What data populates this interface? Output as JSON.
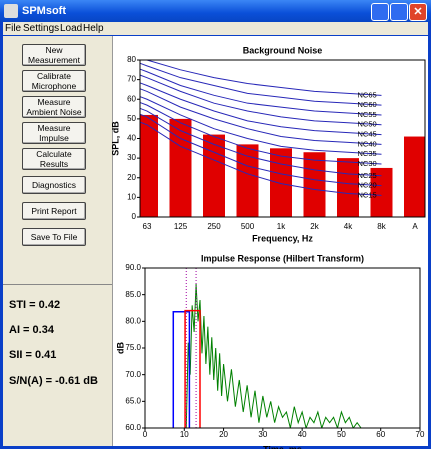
{
  "window": {
    "title": "SPMsoft"
  },
  "menu": [
    "File",
    "Settings",
    "Load",
    "Help"
  ],
  "buttons": [
    "New Measurement",
    "Calibrate Microphone",
    "Measure Ambient Noise",
    "Measure Impulse",
    "Calculate Results",
    "Diagnostics",
    "Print Report",
    "Save To File"
  ],
  "results": [
    "STI = 0.42",
    "AI = 0.34",
    "SII = 0.41",
    "S/N(A) = -0.61 dB"
  ],
  "chart_data": [
    {
      "type": "bar",
      "title": "Background Noise",
      "xlabel": "Frequency, Hz",
      "ylabel": "SPL, dB",
      "categories": [
        "63",
        "125",
        "250",
        "500",
        "1k",
        "2k",
        "4k",
        "8k",
        "A"
      ],
      "series": [
        {
          "color": "#e00000",
          "values": [
            52,
            50,
            42,
            37,
            35,
            33,
            30,
            25,
            41
          ]
        }
      ],
      "curves": [
        {
          "name": "NC15",
          "color": "#2828b8",
          "values": [
            47,
            36,
            29,
            22,
            17,
            14,
            12,
            11
          ]
        },
        {
          "name": "NC20",
          "color": "#2828b8",
          "values": [
            51,
            40,
            33,
            26,
            22,
            19,
            17,
            16
          ]
        },
        {
          "name": "NC25",
          "color": "#2828b8",
          "values": [
            54,
            44,
            37,
            31,
            27,
            24,
            22,
            21
          ]
        },
        {
          "name": "NC30",
          "color": "#2828b8",
          "values": [
            57,
            48,
            41,
            35,
            31,
            29,
            28,
            27
          ]
        },
        {
          "name": "NC35",
          "color": "#2828b8",
          "values": [
            60,
            52,
            45,
            40,
            36,
            34,
            33,
            32
          ]
        },
        {
          "name": "NC40",
          "color": "#2828b8",
          "values": [
            64,
            56,
            50,
            45,
            41,
            39,
            38,
            37
          ]
        },
        {
          "name": "NC45",
          "color": "#2828b8",
          "values": [
            67,
            60,
            54,
            49,
            46,
            44,
            43,
            42
          ]
        },
        {
          "name": "NC50",
          "color": "#2828b8",
          "values": [
            71,
            64,
            58,
            54,
            51,
            49,
            48,
            47
          ]
        },
        {
          "name": "NC55",
          "color": "#2828b8",
          "values": [
            74,
            67,
            62,
            58,
            56,
            54,
            53,
            52
          ]
        },
        {
          "name": "NC60",
          "color": "#2828b8",
          "values": [
            77,
            71,
            67,
            63,
            61,
            59,
            58,
            57
          ]
        },
        {
          "name": "NC65",
          "color": "#2828b8",
          "values": [
            80,
            75,
            71,
            68,
            66,
            64,
            63,
            62
          ]
        }
      ],
      "ylim": [
        0,
        80
      ],
      "yticks": [
        0,
        10,
        20,
        30,
        40,
        50,
        60,
        70,
        80
      ],
      "grid": false
    },
    {
      "type": "line",
      "title": "Impulse Response (Hilbert Transform)",
      "xlabel": "Time, ms",
      "ylabel": "dB",
      "x": [
        10.5,
        11,
        11.5,
        12,
        12.5,
        13,
        13.5,
        14,
        14.5,
        15,
        15.5,
        16,
        16.5,
        17,
        17.5,
        18,
        18.5,
        19,
        19.5,
        20,
        21,
        22,
        23,
        24,
        25,
        26,
        27,
        28,
        29,
        30,
        31,
        32,
        33,
        34,
        35,
        36,
        37,
        38,
        39,
        40,
        41,
        42,
        43,
        44,
        45,
        46,
        47,
        48,
        49,
        50,
        51,
        52,
        53,
        54,
        55
      ],
      "series": [
        {
          "color": "#008000",
          "values": [
            60,
            76,
            70,
            83,
            78,
            87,
            80,
            84,
            74,
            81,
            72,
            79,
            70,
            77,
            69,
            75,
            67,
            74,
            66,
            72,
            65,
            71,
            64,
            69,
            63,
            68,
            62,
            67,
            61,
            66,
            62,
            65,
            61,
            64,
            62,
            63,
            60,
            64,
            61,
            63,
            60,
            62,
            61,
            63,
            60,
            62,
            61,
            62,
            60,
            63,
            61,
            62,
            60,
            61,
            60
          ]
        }
      ],
      "rectangles": [
        {
          "color": "#0000ff",
          "x": [
            7.2,
            11.3
          ],
          "y": 81.8
        },
        {
          "color": "#ff0000",
          "x": [
            10.2,
            14
          ],
          "y": 82
        }
      ],
      "vlines": {
        "color": "#a000a0",
        "values": [
          10.5,
          13
        ]
      },
      "xlim": [
        0,
        70
      ],
      "xticks": [
        0,
        10,
        20,
        30,
        40,
        50,
        60,
        70
      ],
      "ylim": [
        60,
        90
      ],
      "yticks": [
        {
          "value": 60,
          "label": "60.0"
        },
        {
          "value": 65,
          "label": "65.0"
        },
        {
          "value": 70,
          "label": "70.0"
        },
        {
          "value": 75,
          "label": "75.0"
        },
        {
          "value": 80,
          "label": "80.0"
        },
        {
          "value": 85,
          "label": "85.0"
        },
        {
          "value": 90,
          "label": "90.0"
        }
      ],
      "grid": false
    }
  ]
}
